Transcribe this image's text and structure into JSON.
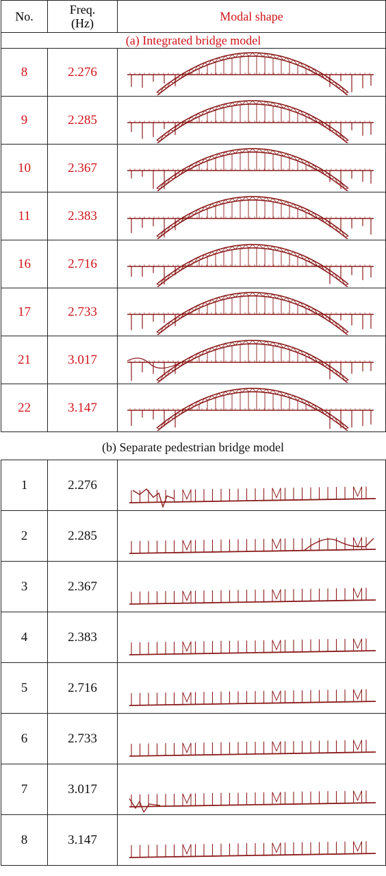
{
  "header": {
    "no": "No.",
    "freq": [
      "Freq.",
      "(Hz)"
    ],
    "shape": "Modal shape"
  },
  "sections": [
    {
      "title": "(a) Integrated bridge model",
      "rows": [
        [
          "8",
          "2.276"
        ],
        [
          "9",
          "2.285"
        ],
        [
          "10",
          "2.367"
        ],
        [
          "11",
          "2.383"
        ],
        [
          "16",
          "2.716"
        ],
        [
          "17",
          "2.733"
        ],
        [
          "21",
          "3.017"
        ],
        [
          "22",
          "3.147"
        ]
      ]
    },
    {
      "title": "(b) Separate pedestrian bridge model",
      "rows": [
        [
          "1",
          "2.276"
        ],
        [
          "2",
          "2.285"
        ],
        [
          "3",
          "2.367"
        ],
        [
          "4",
          "2.383"
        ],
        [
          "5",
          "2.716"
        ],
        [
          "6",
          "2.733"
        ],
        [
          "7",
          "3.017"
        ],
        [
          "8",
          "3.147"
        ]
      ]
    }
  ]
}
